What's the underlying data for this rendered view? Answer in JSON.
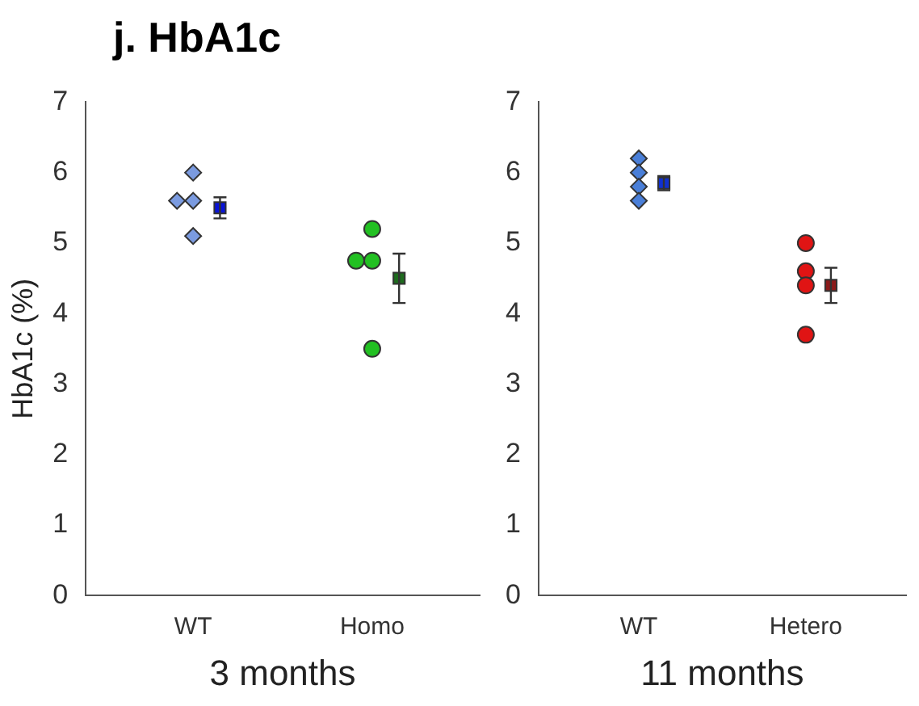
{
  "chart_data": [
    {
      "type": "scatter",
      "title": "j. HbA1c",
      "xlabel": "3 months",
      "ylabel": "HbA1c (%)",
      "categories": [
        "WT",
        "Homo"
      ],
      "ylim": [
        0,
        7
      ],
      "yticks": [
        0,
        1,
        2,
        3,
        4,
        5,
        6,
        7
      ],
      "grid": false,
      "legend": false,
      "series": [
        {
          "color": "#7b9be0",
          "marker": "diamond",
          "x": [
            "WT",
            "WT",
            "WT",
            "WT"
          ],
          "values": [
            6.0,
            5.6,
            5.6,
            5.1
          ]
        },
        {
          "color": "#22c022",
          "marker": "circle",
          "x": [
            "Homo",
            "Homo",
            "Homo",
            "Homo"
          ],
          "values": [
            5.2,
            4.75,
            4.75,
            3.5
          ]
        },
        {
          "color": "#0a14d8",
          "marker": "square",
          "x": [
            "WT"
          ],
          "values": [
            5.5
          ],
          "errors": [
            0.15
          ]
        },
        {
          "color": "#1e6b1e",
          "marker": "square",
          "x": [
            "Homo"
          ],
          "values": [
            4.5
          ],
          "errors": [
            0.35
          ]
        }
      ]
    },
    {
      "type": "scatter",
      "xlabel": "11 months",
      "categories": [
        "WT",
        "Hetero"
      ],
      "ylim": [
        0,
        7
      ],
      "yticks": [
        0,
        1,
        2,
        3,
        4,
        5,
        6,
        7
      ],
      "grid": false,
      "legend": false,
      "series": [
        {
          "color": "#4a7fd8",
          "marker": "diamond",
          "x": [
            "WT",
            "WT",
            "WT",
            "WT"
          ],
          "values": [
            6.2,
            6.0,
            5.8,
            5.6
          ]
        },
        {
          "color": "#e01414",
          "marker": "circle",
          "x": [
            "Hetero",
            "Hetero",
            "Hetero",
            "Hetero"
          ],
          "values": [
            5.0,
            4.6,
            4.4,
            3.7
          ]
        },
        {
          "color": "#1030d0",
          "marker": "square",
          "x": [
            "WT"
          ],
          "values": [
            5.85
          ],
          "errors": [
            0.1
          ]
        },
        {
          "color": "#8b1a1a",
          "marker": "square",
          "x": [
            "Hetero"
          ],
          "values": [
            4.4
          ],
          "errors": [
            0.25
          ]
        }
      ]
    }
  ]
}
